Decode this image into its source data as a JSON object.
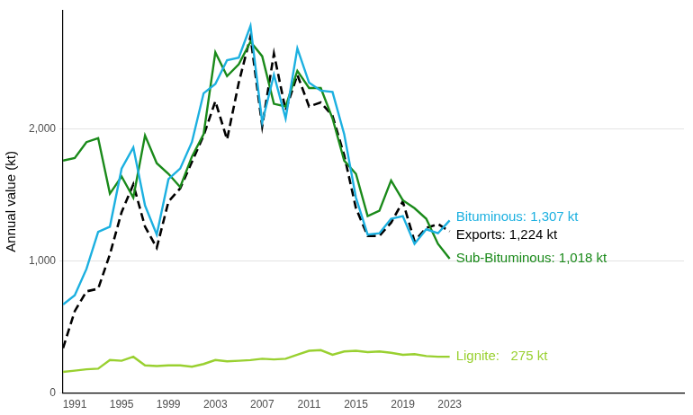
{
  "chart_data": {
    "type": "line",
    "y_label": "Annual value (kt)",
    "x": [
      1990,
      1991,
      1992,
      1993,
      1994,
      1995,
      1996,
      1997,
      1998,
      1999,
      2000,
      2001,
      2002,
      2003,
      2004,
      2005,
      2006,
      2007,
      2008,
      2009,
      2010,
      2011,
      2012,
      2013,
      2014,
      2015,
      2016,
      2017,
      2018,
      2019,
      2020,
      2021,
      2022,
      2023
    ],
    "series": [
      {
        "name": "Bituminous",
        "color": "#1cb0e0",
        "line_style": "solid",
        "values": [
          670,
          740,
          940,
          1220,
          1260,
          1700,
          1860,
          1420,
          1200,
          1620,
          1700,
          1900,
          2270,
          2340,
          2520,
          2540,
          2780,
          2050,
          2410,
          2080,
          2610,
          2350,
          2290,
          2280,
          1960,
          1480,
          1200,
          1210,
          1320,
          1340,
          1130,
          1240,
          1210,
          1307
        ]
      },
      {
        "name": "Sub-Bituminous",
        "color": "#1a8a1a",
        "line_style": "solid",
        "values": [
          1760,
          1780,
          1900,
          1930,
          1510,
          1640,
          1480,
          1950,
          1740,
          1660,
          1560,
          1790,
          1960,
          2580,
          2400,
          2490,
          2660,
          2550,
          2190,
          2170,
          2440,
          2310,
          2310,
          2080,
          1760,
          1660,
          1340,
          1380,
          1610,
          1460,
          1400,
          1320,
          1130,
          1018
        ]
      },
      {
        "name": "Lignite",
        "color": "#99d030",
        "line_style": "solid",
        "values": [
          160,
          170,
          180,
          185,
          250,
          245,
          275,
          210,
          205,
          210,
          210,
          200,
          220,
          250,
          240,
          245,
          250,
          260,
          255,
          260,
          290,
          320,
          325,
          290,
          315,
          320,
          310,
          315,
          305,
          290,
          295,
          280,
          275,
          275
        ]
      },
      {
        "name": "Exports",
        "color": "#000000",
        "line_style": "dashed",
        "values": [
          340,
          620,
          770,
          790,
          1050,
          1370,
          1580,
          1260,
          1100,
          1450,
          1550,
          1750,
          1950,
          2210,
          1920,
          2350,
          2700,
          2020,
          2570,
          2140,
          2410,
          2170,
          2200,
          2100,
          1800,
          1400,
          1190,
          1190,
          1290,
          1450,
          1150,
          1250,
          1280,
          1224
        ]
      }
    ],
    "annotations": [
      {
        "series": "Bituminous",
        "text": "Bituminous: 1,307 kt"
      },
      {
        "series": "Exports",
        "text": "Exports: 1,224 kt"
      },
      {
        "series": "Sub-Bituminous",
        "text": "Sub-Bituminous: 1,018 kt"
      },
      {
        "series": "Lignite",
        "text": "Lignite:   275 kt"
      }
    ],
    "xlim": [
      1990,
      2043
    ],
    "xticks": [
      1991,
      1995,
      1999,
      2003,
      2007,
      2011,
      2015,
      2019,
      2023
    ],
    "ylim": [
      0,
      2900
    ],
    "yticks": [
      0,
      {
        "value": 1000,
        "label": "1,000"
      },
      {
        "value": 2000,
        "label": "2,000"
      }
    ],
    "grid": "y"
  }
}
